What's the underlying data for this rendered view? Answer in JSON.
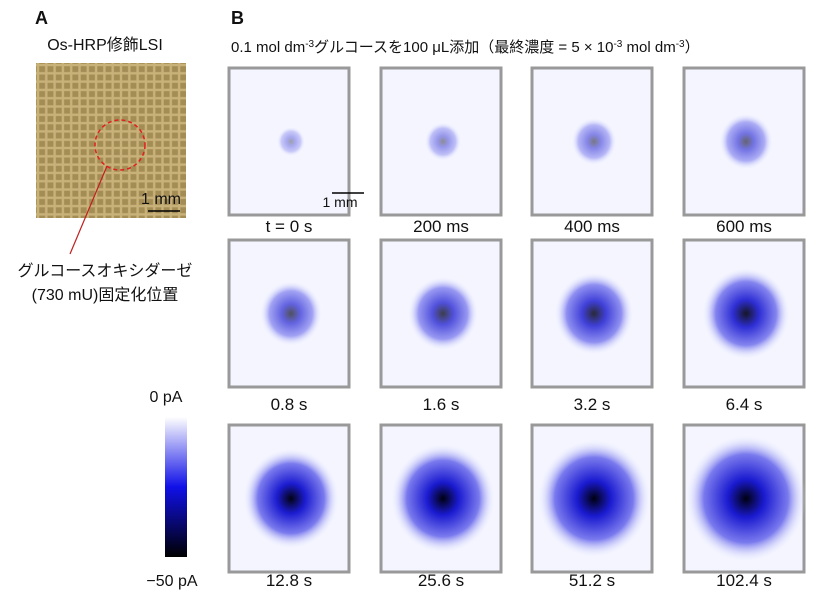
{
  "panel_a": {
    "label": "A",
    "title": "Os-HRP修飾LSI",
    "scale_bar": "1 mm",
    "annotation": [
      "グルコースオキシダーゼ",
      "(730 mU)固定化位置"
    ]
  },
  "colorbar": {
    "top_label": "0 pA",
    "bottom_label": "−50 pA"
  },
  "panel_b": {
    "label": "B",
    "title": [
      {
        "text": "0.1 mol dm",
        "sup": false
      },
      {
        "text": "-3",
        "sup": true
      },
      {
        "text": "グルコースを100 μL添加（最終濃度 = 5 × 10",
        "sup": false
      },
      {
        "text": "-3",
        "sup": true
      },
      {
        "text": " mol dm",
        "sup": false
      },
      {
        "text": "-3",
        "sup": true
      },
      {
        "text": "）",
        "sup": false
      }
    ],
    "scale_bar": "1 mm",
    "frames": [
      "t = 0 s",
      "200 ms",
      "400 ms",
      "600 ms",
      "0.8 s",
      "1.6 s",
      "3.2 s",
      "6.4 s",
      "12.8 s",
      "25.6 s",
      "51.2 s",
      "102.4 s"
    ]
  }
}
